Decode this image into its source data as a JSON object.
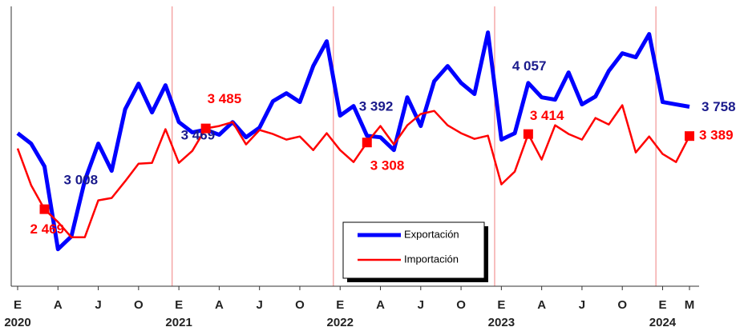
{
  "chart_data": {
    "type": "line",
    "categories": [
      "E",
      null,
      null,
      "A",
      null,
      null,
      "J",
      null,
      null,
      "O",
      null,
      null,
      "E",
      null,
      null,
      "A",
      null,
      null,
      "J",
      null,
      null,
      "O",
      null,
      null,
      "E",
      null,
      null,
      "A",
      null,
      null,
      "J",
      null,
      null,
      "O",
      null,
      null,
      "E",
      null,
      null,
      "A",
      null,
      null,
      "J",
      null,
      null,
      "O",
      null,
      null,
      "E",
      null,
      "M"
    ],
    "year_categories": [
      "2020",
      null,
      null,
      null,
      null,
      null,
      null,
      null,
      null,
      null,
      null,
      null,
      "2021",
      null,
      null,
      null,
      null,
      null,
      null,
      null,
      null,
      null,
      null,
      null,
      "2022",
      null,
      null,
      null,
      null,
      null,
      null,
      null,
      null,
      null,
      null,
      null,
      "2023",
      null,
      null,
      null,
      null,
      null,
      null,
      null,
      null,
      null,
      null,
      null,
      "2024",
      null,
      null
    ],
    "ylim": [
      1500,
      5020
    ],
    "series": [
      {
        "name": "Exportación",
        "color": "#0000ff",
        "values": [
          3425,
          3294,
          3008,
          1966,
          2127,
          2831,
          3294,
          2952,
          3726,
          4048,
          3686,
          4028,
          3565,
          3435,
          3469,
          3405,
          3565,
          3374,
          3495,
          3827,
          3928,
          3817,
          4270,
          4582,
          3646,
          3767,
          3392,
          3374,
          3213,
          3877,
          3515,
          4079,
          4270,
          4058,
          3918,
          4692,
          3344,
          3425,
          4057,
          3877,
          3847,
          4189,
          3787,
          3887,
          4209,
          4431,
          4380,
          4672,
          3817,
          3787,
          3758
        ],
        "value_labels": [
          null,
          null,
          "3 008",
          null,
          null,
          null,
          null,
          null,
          null,
          null,
          null,
          null,
          null,
          null,
          "3 469",
          null,
          null,
          null,
          null,
          null,
          null,
          null,
          null,
          null,
          null,
          null,
          "3 392",
          null,
          null,
          null,
          null,
          null,
          null,
          null,
          null,
          null,
          null,
          null,
          "4 057",
          null,
          null,
          null,
          null,
          null,
          null,
          null,
          null,
          null,
          null,
          null,
          "3 758"
        ]
      },
      {
        "name": "Importación",
        "color": "#ff0000",
        "values": [
          3233,
          2771,
          2469,
          2308,
          2117,
          2117,
          2580,
          2610,
          2821,
          3042,
          3052,
          3475,
          3052,
          3203,
          3485,
          3515,
          3565,
          3284,
          3465,
          3415,
          3344,
          3384,
          3213,
          3425,
          3213,
          3062,
          3308,
          3515,
          3284,
          3525,
          3666,
          3706,
          3525,
          3425,
          3354,
          3394,
          2781,
          2942,
          3414,
          3093,
          3525,
          3415,
          3344,
          3616,
          3535,
          3777,
          3183,
          3384,
          3163,
          3062,
          3389
        ],
        "value_labels": [
          null,
          null,
          "2 469",
          null,
          null,
          null,
          null,
          null,
          null,
          null,
          null,
          null,
          null,
          null,
          "3 485",
          null,
          null,
          null,
          null,
          null,
          null,
          null,
          null,
          null,
          null,
          null,
          "3 308",
          null,
          null,
          null,
          null,
          null,
          null,
          null,
          null,
          null,
          null,
          null,
          "3 414",
          null,
          null,
          null,
          null,
          null,
          null,
          null,
          null,
          null,
          null,
          null,
          "3 389"
        ]
      }
    ]
  }
}
